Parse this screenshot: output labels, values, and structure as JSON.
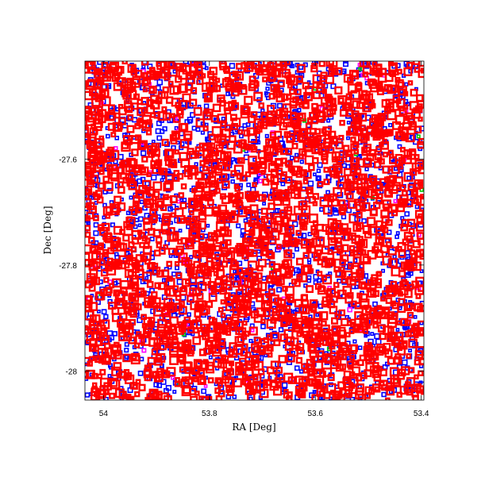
{
  "chart_data": {
    "type": "scatter",
    "xlabel": "RA [Deg]",
    "ylabel": "Dec [Deg]",
    "xlim": [
      54.035,
      53.395
    ],
    "ylim": [
      -28.055,
      -27.415
    ],
    "x_ticks": [
      {
        "value": 54.0,
        "label": "54"
      },
      {
        "value": 53.8,
        "label": "53.8"
      },
      {
        "value": 53.6,
        "label": "53.6"
      },
      {
        "value": 53.4,
        "label": "53.4"
      }
    ],
    "y_ticks": [
      {
        "value": -27.6,
        "label": "-27.6"
      },
      {
        "value": -27.8,
        "label": "-27.8"
      },
      {
        "value": -28.0,
        "label": "-28"
      }
    ],
    "grid": false,
    "legend": "none",
    "series": [
      {
        "color": "#0000ff",
        "marker": "square-outline",
        "density": "dense"
      },
      {
        "color": "#ff00ff",
        "marker": "square-outline",
        "density": "sparse"
      },
      {
        "color": "#00cc00",
        "marker": "square-outline",
        "density": "very sparse"
      },
      {
        "color": "#ff0000",
        "marker": "square-outline-thick",
        "density": "very dense"
      }
    ]
  }
}
